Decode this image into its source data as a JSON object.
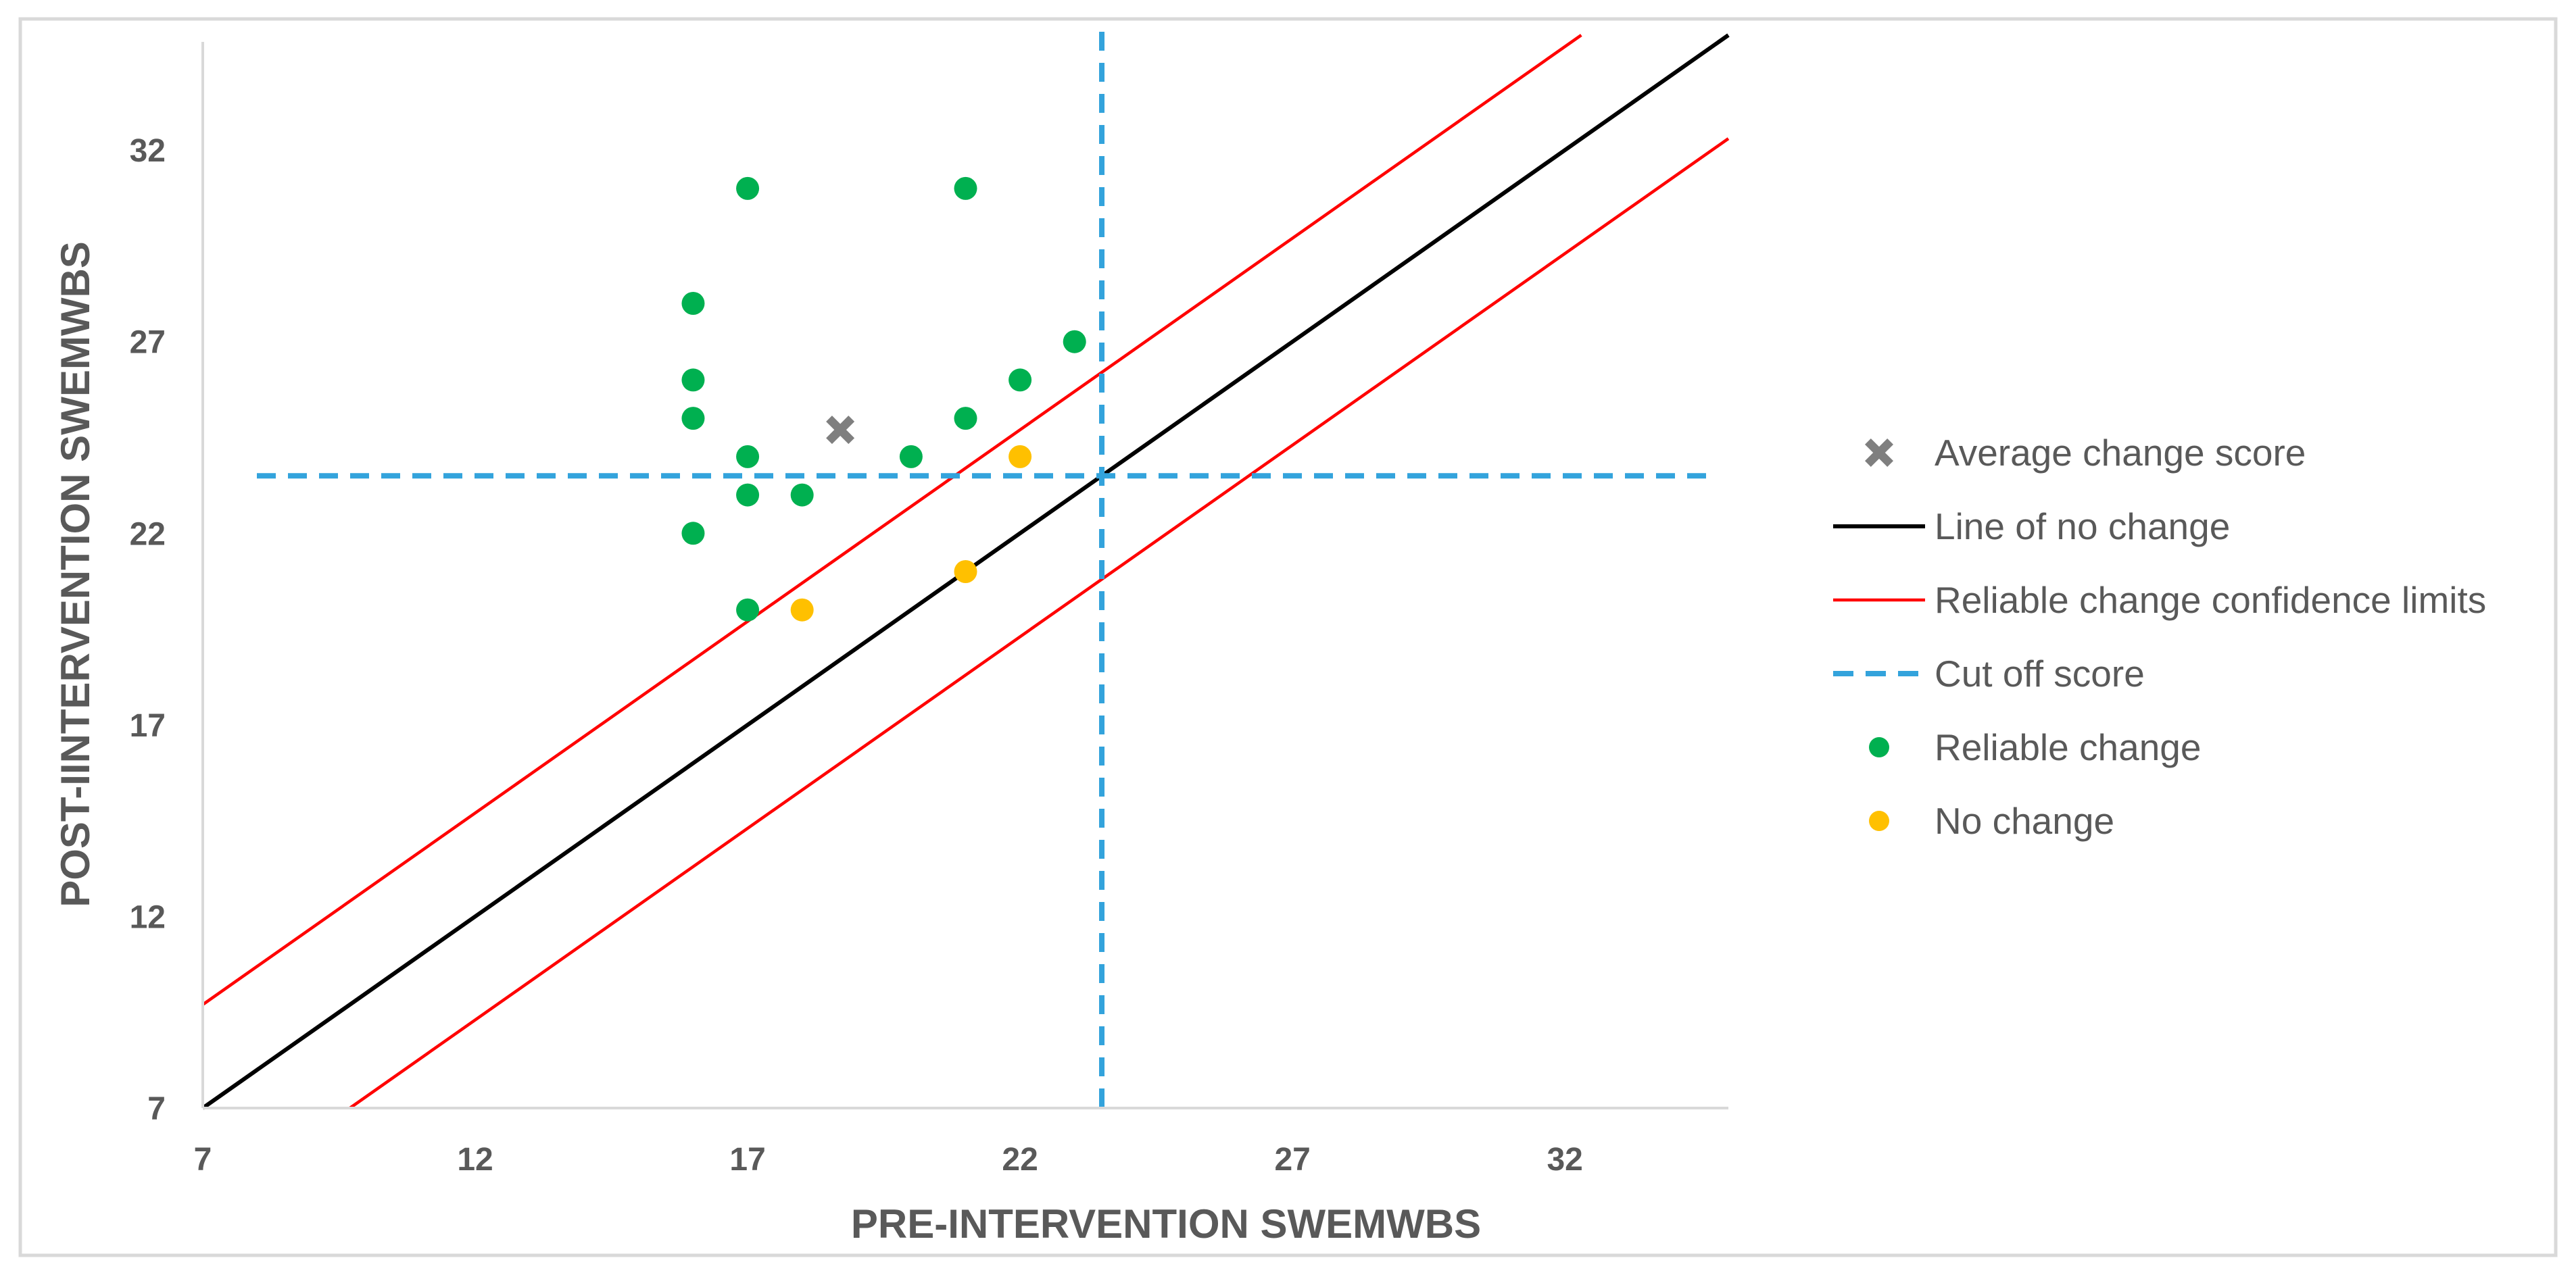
{
  "chart_data": {
    "type": "scatter",
    "title": "",
    "xlabel": "PRE-INTERVENTION SWEMWBS",
    "ylabel": "POST-IINTERVENTION SWEMWBS",
    "xlim": [
      7,
      35
    ],
    "ylim": [
      7,
      35
    ],
    "xticks": [
      7,
      12,
      17,
      22,
      27,
      32
    ],
    "yticks": [
      7,
      12,
      17,
      22,
      27,
      32
    ],
    "grid": false,
    "legend_position": "right",
    "series": [
      {
        "name": "Average change score",
        "kind": "marker-x",
        "color": "#7f7f7f",
        "points": [
          {
            "x": 18.7,
            "y": 24.7
          }
        ]
      },
      {
        "name": "Line of no change",
        "kind": "line",
        "color": "#000000",
        "slope": 1,
        "offset": 0
      },
      {
        "name": "Reliable change confidence limits",
        "kind": "line-pair",
        "color": "#ff0000",
        "slope": 1,
        "offsets": [
          2.7,
          -2.7
        ]
      },
      {
        "name": "Cut off score",
        "kind": "cutoff",
        "color": "#33a3dc",
        "x": 23.5,
        "y": 23.5
      },
      {
        "name": "Reliable change",
        "kind": "scatter",
        "color": "#00b050",
        "points": [
          {
            "x": 17,
            "y": 31
          },
          {
            "x": 21,
            "y": 31
          },
          {
            "x": 16,
            "y": 28
          },
          {
            "x": 23,
            "y": 27
          },
          {
            "x": 16,
            "y": 26
          },
          {
            "x": 22,
            "y": 26
          },
          {
            "x": 16,
            "y": 25
          },
          {
            "x": 21,
            "y": 25
          },
          {
            "x": 17,
            "y": 24
          },
          {
            "x": 20,
            "y": 24
          },
          {
            "x": 17,
            "y": 23
          },
          {
            "x": 18,
            "y": 23
          },
          {
            "x": 16,
            "y": 22
          },
          {
            "x": 17,
            "y": 20
          }
        ]
      },
      {
        "name": "No change",
        "kind": "scatter",
        "color": "#ffc000",
        "points": [
          {
            "x": 22,
            "y": 24
          },
          {
            "x": 21,
            "y": 21
          },
          {
            "x": 18,
            "y": 20
          }
        ]
      }
    ]
  }
}
